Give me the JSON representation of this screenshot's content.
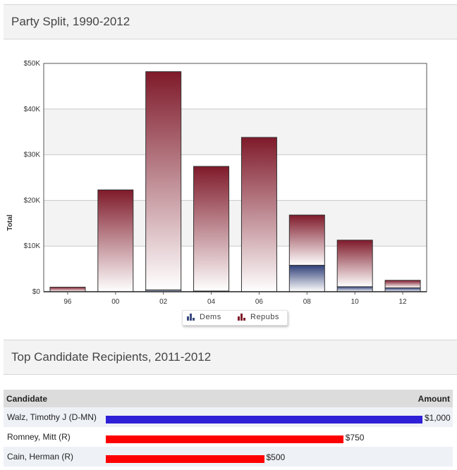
{
  "section1": {
    "title": "Party Split, 1990-2012"
  },
  "section2": {
    "title": "Top Candidate Recipients, 2011-2012"
  },
  "chart_data": {
    "type": "bar",
    "stacked": true,
    "categories": [
      "96",
      "00",
      "02",
      "04",
      "06",
      "08",
      "10",
      "12"
    ],
    "series": [
      {
        "name": "Dems",
        "color": "#3b4a80",
        "values": [
          0,
          0,
          400,
          150,
          0,
          5800,
          1100,
          850
        ]
      },
      {
        "name": "Repubs",
        "color": "#7f1a2a",
        "values": [
          1000,
          22300,
          47800,
          27300,
          33800,
          11000,
          10200,
          1650
        ]
      }
    ],
    "ylabel": "Total",
    "ylim": [
      0,
      50000
    ],
    "yticks": [
      0,
      10000,
      20000,
      30000,
      40000,
      50000
    ],
    "yticklabels": [
      "$0",
      "$10K",
      "$20K",
      "$30K",
      "$40K",
      "$50K"
    ],
    "grid": true,
    "legend_position": "bottom-center"
  },
  "table": {
    "headers": {
      "candidate": "Candidate",
      "amount": "Amount"
    },
    "max_amount": 1000,
    "rows": [
      {
        "name": "Walz, Timothy J (D-MN)",
        "amount": 1000,
        "label": "$1,000",
        "color": "#2e20d6"
      },
      {
        "name": "Romney, Mitt (R)",
        "amount": 750,
        "label": "$750",
        "color": "#ff0000"
      },
      {
        "name": "Cain, Herman (R)",
        "amount": 500,
        "label": "$500",
        "color": "#ff0000"
      }
    ]
  }
}
